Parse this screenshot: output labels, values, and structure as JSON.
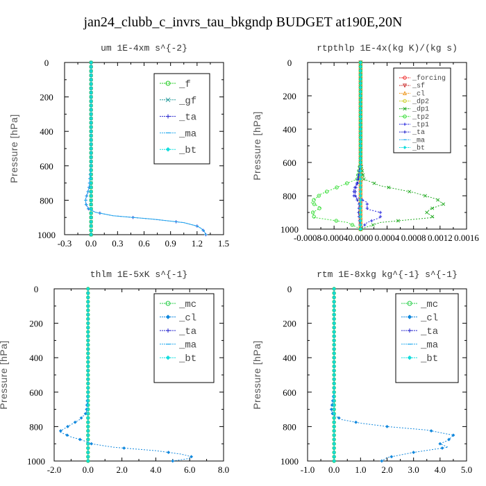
{
  "title": "jan24_clubb_c_invrs_tau_bkgndp  BUDGET at190E,20N",
  "colors": {
    "f": "#22cc22",
    "gf": "#229999",
    "ta": "#2222cc",
    "ma": "#22aaee",
    "bt": "#11dddd",
    "forcing": "#ee2222",
    "sf": "#cc3333",
    "cl_rt": "#ee9922",
    "dp2": "#cccc22",
    "dp1": "#22aa22",
    "tp2": "#33dd33",
    "tp1": "#2222dd",
    "mc": "#22cc44",
    "cl": "#1188dd"
  },
  "chart_data": [
    {
      "type": "line",
      "title": "um  1E-4xm s^{-2}",
      "ylabel": "Pressure [hPa]",
      "xlim": [
        -0.3,
        1.5
      ],
      "ylim": [
        1000,
        0
      ],
      "xticks": [
        "-0.3",
        "0.0",
        "0.3",
        "0.6",
        "0.9",
        "1.2",
        "1.5"
      ],
      "yticks": [
        "0",
        "200",
        "400",
        "600",
        "800",
        "1000"
      ],
      "series": [
        {
          "name": "_f",
          "color_key": "f",
          "marker": "o",
          "x": [
            0,
            0,
            0,
            0,
            0,
            0,
            0,
            0,
            0,
            0,
            0
          ],
          "y": [
            0,
            100,
            200,
            300,
            400,
            500,
            600,
            700,
            800,
            900,
            1000
          ]
        },
        {
          "name": "_gf",
          "color_key": "gf",
          "marker": "x",
          "x": [
            0,
            0,
            0,
            0,
            0,
            0,
            0,
            0,
            0,
            0,
            0
          ],
          "y": [
            0,
            100,
            200,
            300,
            400,
            500,
            600,
            700,
            800,
            900,
            1000
          ]
        },
        {
          "name": "_ta",
          "color_key": "ta",
          "marker": "+",
          "x": [
            0,
            0,
            0,
            0,
            0,
            0,
            0,
            -0.02,
            -0.04,
            -0.06,
            -0.06,
            -0.03,
            0.05,
            0.25,
            0.7,
            1.05,
            1.2,
            1.25,
            1.28,
            1.3
          ],
          "y": [
            0,
            100,
            200,
            300,
            400,
            500,
            600,
            720,
            760,
            790,
            820,
            850,
            870,
            890,
            910,
            930,
            950,
            965,
            980,
            1000
          ]
        },
        {
          "name": "_ma",
          "color_key": "ma",
          "marker": "-",
          "x": [
            0,
            0,
            0,
            0,
            0,
            0,
            0,
            -0.02,
            -0.04,
            -0.06,
            -0.06,
            -0.03,
            0.05,
            0.25,
            0.7,
            1.05,
            1.2,
            1.25,
            1.28,
            1.3
          ],
          "y": [
            0,
            100,
            200,
            300,
            400,
            500,
            600,
            720,
            760,
            790,
            820,
            850,
            870,
            890,
            910,
            930,
            950,
            965,
            980,
            1000
          ]
        },
        {
          "name": "_bt",
          "color_key": "bt",
          "marker": "d",
          "x": [
            0,
            0,
            0,
            0,
            0,
            0,
            0,
            0,
            0,
            0,
            0
          ],
          "y": [
            0,
            100,
            200,
            300,
            400,
            500,
            600,
            700,
            800,
            900,
            1000
          ]
        }
      ]
    },
    {
      "type": "line",
      "title": "rtpthlp  1E-4x(kg K)/(kg s)",
      "ylabel": "Pressure [hPa]",
      "xlim": [
        -0.0008,
        0.0016
      ],
      "ylim": [
        1000,
        0
      ],
      "xticks": [
        "-0.0008",
        "-0.0004",
        "0.0000",
        "0.0004",
        "0.0008",
        "0.0012",
        "0.0016"
      ],
      "yticks": [
        "0",
        "200",
        "400",
        "600",
        "800",
        "1000"
      ],
      "series": [
        {
          "name": "_forcing",
          "color_key": "forcing",
          "marker": "o",
          "x": [
            0,
            0,
            0,
            0,
            0,
            0,
            0,
            0,
            0,
            0,
            0
          ],
          "y": [
            0,
            100,
            200,
            300,
            400,
            500,
            600,
            700,
            800,
            900,
            1000
          ]
        },
        {
          "name": "_sf",
          "color_key": "sf",
          "marker": "v",
          "x": [
            0,
            0,
            0,
            0,
            0,
            0,
            0,
            0,
            0,
            0,
            0
          ],
          "y": [
            0,
            100,
            200,
            300,
            400,
            500,
            600,
            700,
            800,
            900,
            1000
          ]
        },
        {
          "name": "_cl",
          "color_key": "cl_rt",
          "marker": "^",
          "x": [
            0,
            0,
            0,
            0,
            0,
            0,
            0,
            0,
            0,
            0,
            0
          ],
          "y": [
            0,
            100,
            200,
            300,
            400,
            500,
            600,
            700,
            800,
            900,
            1000
          ]
        },
        {
          "name": "_dp2",
          "color_key": "dp2",
          "marker": "o",
          "x": [
            0,
            0,
            0,
            0,
            0,
            0,
            0,
            0,
            0,
            0,
            0
          ],
          "y": [
            0,
            100,
            200,
            300,
            400,
            500,
            600,
            700,
            800,
            900,
            1000
          ]
        },
        {
          "name": "_dp1",
          "color_key": "dp1",
          "marker": "x",
          "x": [
            0,
            0,
            5e-05,
            0.0003,
            0.0008,
            0.00115,
            0.00125,
            0.00105,
            0.001,
            0.0011,
            0.0003,
            0
          ],
          "y": [
            0,
            600,
            700,
            740,
            780,
            820,
            850,
            880,
            900,
            930,
            960,
            1000
          ]
        },
        {
          "name": "_tp2",
          "color_key": "tp2",
          "marker": "o",
          "x": [
            0,
            0,
            -5e-05,
            -0.0003,
            -0.0006,
            -0.00075,
            -0.0006,
            -0.00072,
            -0.0007,
            -0.0002,
            0
          ],
          "y": [
            0,
            600,
            700,
            740,
            790,
            840,
            870,
            900,
            930,
            960,
            1000
          ]
        },
        {
          "name": "_tp1",
          "color_key": "tp1",
          "marker": "+",
          "x": [
            0,
            0,
            -5e-05,
            -0.0001,
            -0.0001,
            0.0001,
            0.0001,
            0.0003,
            0.0003,
            0.0001,
            0
          ],
          "y": [
            0,
            600,
            720,
            760,
            800,
            840,
            880,
            900,
            930,
            960,
            1000
          ]
        },
        {
          "name": "_ta",
          "color_key": "ta",
          "marker": "+",
          "x": [
            0,
            0,
            -4e-05,
            -8e-05,
            -8e-05,
            -2e-05,
            -3e-05,
            0
          ],
          "y": [
            0,
            600,
            720,
            760,
            800,
            850,
            900,
            1000
          ]
        },
        {
          "name": "_ma",
          "color_key": "ma",
          "marker": "-",
          "x": [
            0,
            0,
            0,
            0,
            0,
            0,
            0,
            0,
            0,
            0,
            0
          ],
          "y": [
            0,
            100,
            200,
            300,
            400,
            500,
            600,
            700,
            800,
            900,
            1000
          ]
        },
        {
          "name": "_bt",
          "color_key": "bt",
          "marker": "d",
          "x": [
            0,
            0,
            0,
            0,
            0,
            0,
            0,
            0,
            0,
            0,
            0
          ],
          "y": [
            0,
            100,
            200,
            300,
            400,
            500,
            600,
            700,
            800,
            900,
            1000
          ]
        }
      ]
    },
    {
      "type": "line",
      "title": "thlm  1E-5xK s^{-1}",
      "ylabel": "Pressure [hPa]",
      "xlim": [
        -2.0,
        8.0
      ],
      "ylim": [
        1000,
        0
      ],
      "xticks": [
        "-2.0",
        "0.0",
        "2.0",
        "4.0",
        "6.0",
        "8.0"
      ],
      "yticks": [
        "0",
        "200",
        "400",
        "600",
        "800",
        "1000"
      ],
      "series": [
        {
          "name": "_mc",
          "color_key": "mc",
          "marker": "o",
          "x": [
            0,
            0,
            0,
            0,
            0,
            0,
            0,
            0,
            0,
            0,
            0
          ],
          "y": [
            0,
            100,
            200,
            300,
            400,
            500,
            600,
            700,
            800,
            900,
            1000
          ]
        },
        {
          "name": "_cl",
          "color_key": "cl",
          "marker": "d",
          "x": [
            0,
            0,
            0,
            0,
            0,
            0,
            0,
            -0.1,
            -0.5,
            -1.2,
            -1.7,
            -1.0,
            -0.3,
            0.2,
            1.5,
            4.0,
            5.5,
            6.1,
            6.0,
            5.0
          ],
          "y": [
            0,
            100,
            200,
            300,
            400,
            500,
            600,
            720,
            760,
            800,
            830,
            860,
            880,
            900,
            920,
            940,
            960,
            975,
            985,
            1000
          ]
        },
        {
          "name": "_ta",
          "color_key": "ta",
          "marker": "+",
          "x": [
            0,
            0,
            0,
            0,
            0,
            0,
            0,
            0,
            0,
            0,
            0
          ],
          "y": [
            0,
            100,
            200,
            300,
            400,
            500,
            600,
            700,
            800,
            900,
            1000
          ]
        },
        {
          "name": "_ma",
          "color_key": "ma",
          "marker": "-",
          "x": [
            0,
            0,
            0,
            0,
            0,
            0,
            0,
            0,
            0,
            0,
            0
          ],
          "y": [
            0,
            100,
            200,
            300,
            400,
            500,
            600,
            700,
            800,
            900,
            1000
          ]
        },
        {
          "name": "_bt",
          "color_key": "bt",
          "marker": "d",
          "x": [
            0,
            0,
            0,
            0,
            0,
            0,
            0,
            0,
            0,
            0,
            0
          ],
          "y": [
            0,
            100,
            200,
            300,
            400,
            500,
            600,
            700,
            800,
            900,
            1000
          ]
        }
      ]
    },
    {
      "type": "line",
      "title": "rtm  1E-8xkg kg^{-1} s^{-1}",
      "ylabel": "Pressure [hPa]",
      "xlim": [
        -1.0,
        5.0
      ],
      "ylim": [
        1000,
        0
      ],
      "xticks": [
        "-1.0",
        "0.0",
        "1.0",
        "2.0",
        "3.0",
        "4.0",
        "5.0"
      ],
      "yticks": [
        "0",
        "200",
        "400",
        "600",
        "800",
        "1000"
      ],
      "series": [
        {
          "name": "_mc",
          "color_key": "mc",
          "marker": "o",
          "x": [
            0,
            0,
            0,
            0,
            0,
            0,
            0,
            0,
            0,
            0,
            0
          ],
          "y": [
            0,
            100,
            200,
            300,
            400,
            500,
            600,
            700,
            800,
            900,
            1000
          ]
        },
        {
          "name": "_cl",
          "color_key": "cl",
          "marker": "d",
          "x": [
            0,
            0,
            0,
            0,
            0,
            0,
            0,
            -0.1,
            -0.05,
            0.3,
            1.0,
            2.0,
            3.5,
            4.5,
            4.3,
            4.0,
            4.3,
            3.0,
            2.0,
            1.8
          ],
          "y": [
            0,
            100,
            200,
            300,
            400,
            500,
            600,
            700,
            730,
            760,
            780,
            800,
            820,
            850,
            880,
            900,
            920,
            950,
            980,
            1000
          ]
        },
        {
          "name": "_ta",
          "color_key": "ta",
          "marker": "+",
          "x": [
            0,
            0,
            0,
            0,
            0,
            0,
            0,
            0,
            0,
            0,
            0
          ],
          "y": [
            0,
            100,
            200,
            300,
            400,
            500,
            600,
            700,
            800,
            900,
            1000
          ]
        },
        {
          "name": "_ma",
          "color_key": "ma",
          "marker": "-",
          "x": [
            0,
            0,
            0,
            0,
            0,
            0,
            0,
            0,
            0,
            0,
            0
          ],
          "y": [
            0,
            100,
            200,
            300,
            400,
            500,
            600,
            700,
            800,
            900,
            1000
          ]
        },
        {
          "name": "_bt",
          "color_key": "bt",
          "marker": "d",
          "x": [
            0,
            0,
            0,
            0,
            0,
            0,
            0,
            0,
            0,
            0,
            0
          ],
          "y": [
            0,
            100,
            200,
            300,
            400,
            500,
            600,
            700,
            800,
            900,
            1000
          ]
        }
      ]
    }
  ]
}
